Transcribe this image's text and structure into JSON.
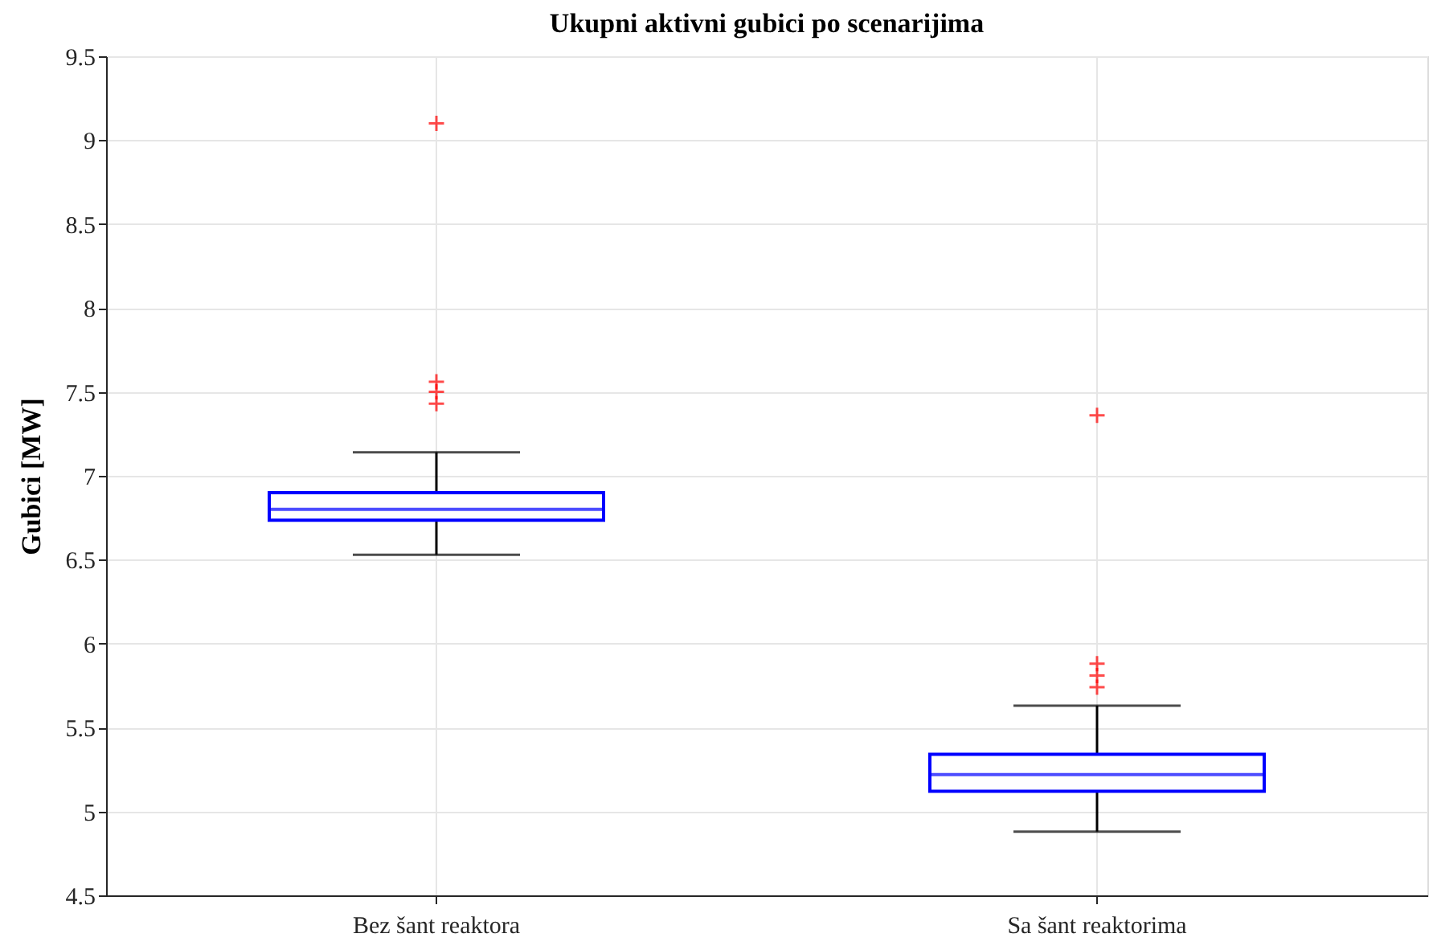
{
  "chart_data": {
    "type": "box",
    "title": "Ukupni aktivni gubici po scenarijima",
    "ylabel": "Gubici [MW]",
    "categories": [
      "Bez šant reaktora",
      "Sa šant reaktorima"
    ],
    "boxes": [
      {
        "low": 6.53,
        "q1": 6.735,
        "median": 6.8,
        "q3": 6.9,
        "high": 7.14,
        "outliers": [
          9.1,
          7.56,
          7.5,
          7.43
        ]
      },
      {
        "low": 4.88,
        "q1": 5.12,
        "median": 5.22,
        "q3": 5.34,
        "high": 5.63,
        "outliers": [
          7.36,
          5.88,
          5.81,
          5.74
        ]
      }
    ],
    "color": "#0000ff",
    "ylim": [
      4.5,
      9.5
    ],
    "yticks": [
      4.5,
      5,
      5.5,
      6,
      6.5,
      7,
      7.5,
      8,
      8.5,
      9,
      9.5
    ],
    "grid": true
  }
}
